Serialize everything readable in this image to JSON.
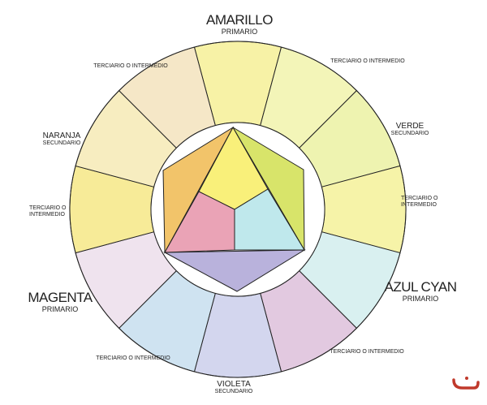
{
  "wheel": {
    "segments": [
      {
        "name": "amarillo",
        "color": "#f7f2a6"
      },
      {
        "name": "terciario-amarillo-verde",
        "color": "#f3f5b8"
      },
      {
        "name": "verde",
        "color": "#eef3b0"
      },
      {
        "name": "terciario-verde-cyan",
        "color": "#f6f3a8"
      },
      {
        "name": "azul-cyan",
        "color": "#d9f0f0"
      },
      {
        "name": "terciario-cyan-violeta",
        "color": "#e2c9e0"
      },
      {
        "name": "violeta",
        "color": "#d3d6ee"
      },
      {
        "name": "terciario-violeta-magenta",
        "color": "#cfe3f1"
      },
      {
        "name": "magenta",
        "color": "#efe3ee"
      },
      {
        "name": "terciario-magenta-naranja",
        "color": "#f7eb98"
      },
      {
        "name": "naranja",
        "color": "#f7edc0"
      },
      {
        "name": "terciario-naranja-amarillo",
        "color": "#f5e7c7"
      }
    ],
    "inner": {
      "yellow": "#f9f07a",
      "orange": "#f2c46a",
      "green": "#d8e46a",
      "magenta": "#eaa3b6",
      "cyan": "#bfe8ec",
      "violet": "#b9b2dc"
    }
  },
  "labels": {
    "amarillo": {
      "name": "AMARILLO",
      "type": "PRIMARIO"
    },
    "verde": {
      "name": "VERDE",
      "type": "SECUNDARIO"
    },
    "azul_cyan": {
      "name": "AZUL CYAN",
      "type": "PRIMARIO"
    },
    "violeta": {
      "name": "VIOLETA",
      "type": "SECUNDARIO"
    },
    "magenta": {
      "name": "MAGENTA",
      "type": "PRIMARIO"
    },
    "naranja": {
      "name": "NARANJA",
      "type": "SECUNDARIO"
    },
    "terciario_top_right": "TERCIARIO O INTERMEDIO",
    "terciario_right_1": "TERCIARIO O",
    "terciario_right_2": "INTERMEDIO",
    "terciario_bottom_right": "TERCIARIO O INTERMEDIO",
    "terciario_bottom_left": "TERCIARIO O INTERMEDIO",
    "terciario_left_1": "TERCIARIO O",
    "terciario_left_2": "INTERMEDIO",
    "terciario_top_left": "TERCIARIO O INTERMEDIO"
  },
  "watermark": {
    "color": "#c0392b",
    "icon": "logo-mark"
  }
}
